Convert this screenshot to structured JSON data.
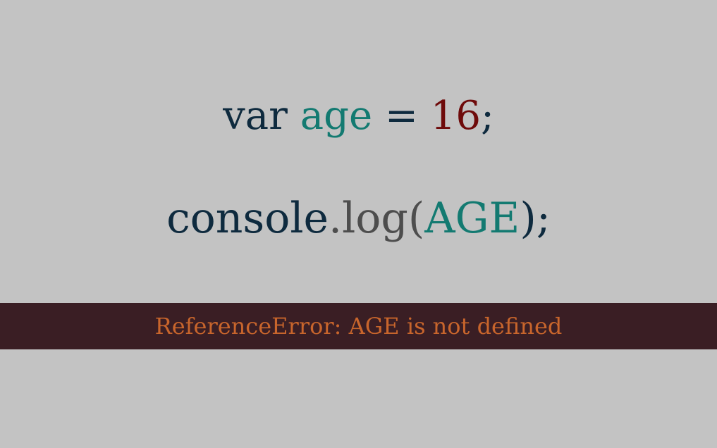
{
  "colors": {
    "background": "#c3c3c3",
    "keyword": "#0e2a3e",
    "identifier": "#137a71",
    "number": "#6e0a0a",
    "operator": "#0e2a3e",
    "method": "#4d4d4d",
    "error_bar": "#3a1e24",
    "error_text": "#c8652c"
  },
  "code": {
    "line1": {
      "keyword": "var",
      "identifier": "age",
      "operator": "=",
      "number": "16",
      "terminator": ";"
    },
    "line2": {
      "object": "console",
      "dot_method": ".log(",
      "argument": "AGE",
      "close": ");"
    }
  },
  "error": {
    "message": "ReferenceError: AGE is not defined"
  }
}
